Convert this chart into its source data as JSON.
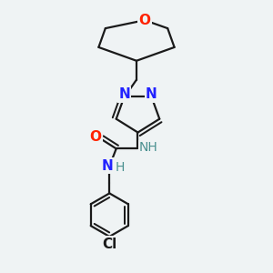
{
  "bg_color": "#eff3f4",
  "bond_color": "#1a1a1a",
  "bond_width": 1.6,
  "figsize": [
    3.0,
    3.0
  ],
  "dpi": 100,
  "colors": {
    "O": "#ff2200",
    "N": "#2222ff",
    "NH": "#4a9090",
    "Cl": "#1a1a1a",
    "C": "#1a1a1a"
  }
}
